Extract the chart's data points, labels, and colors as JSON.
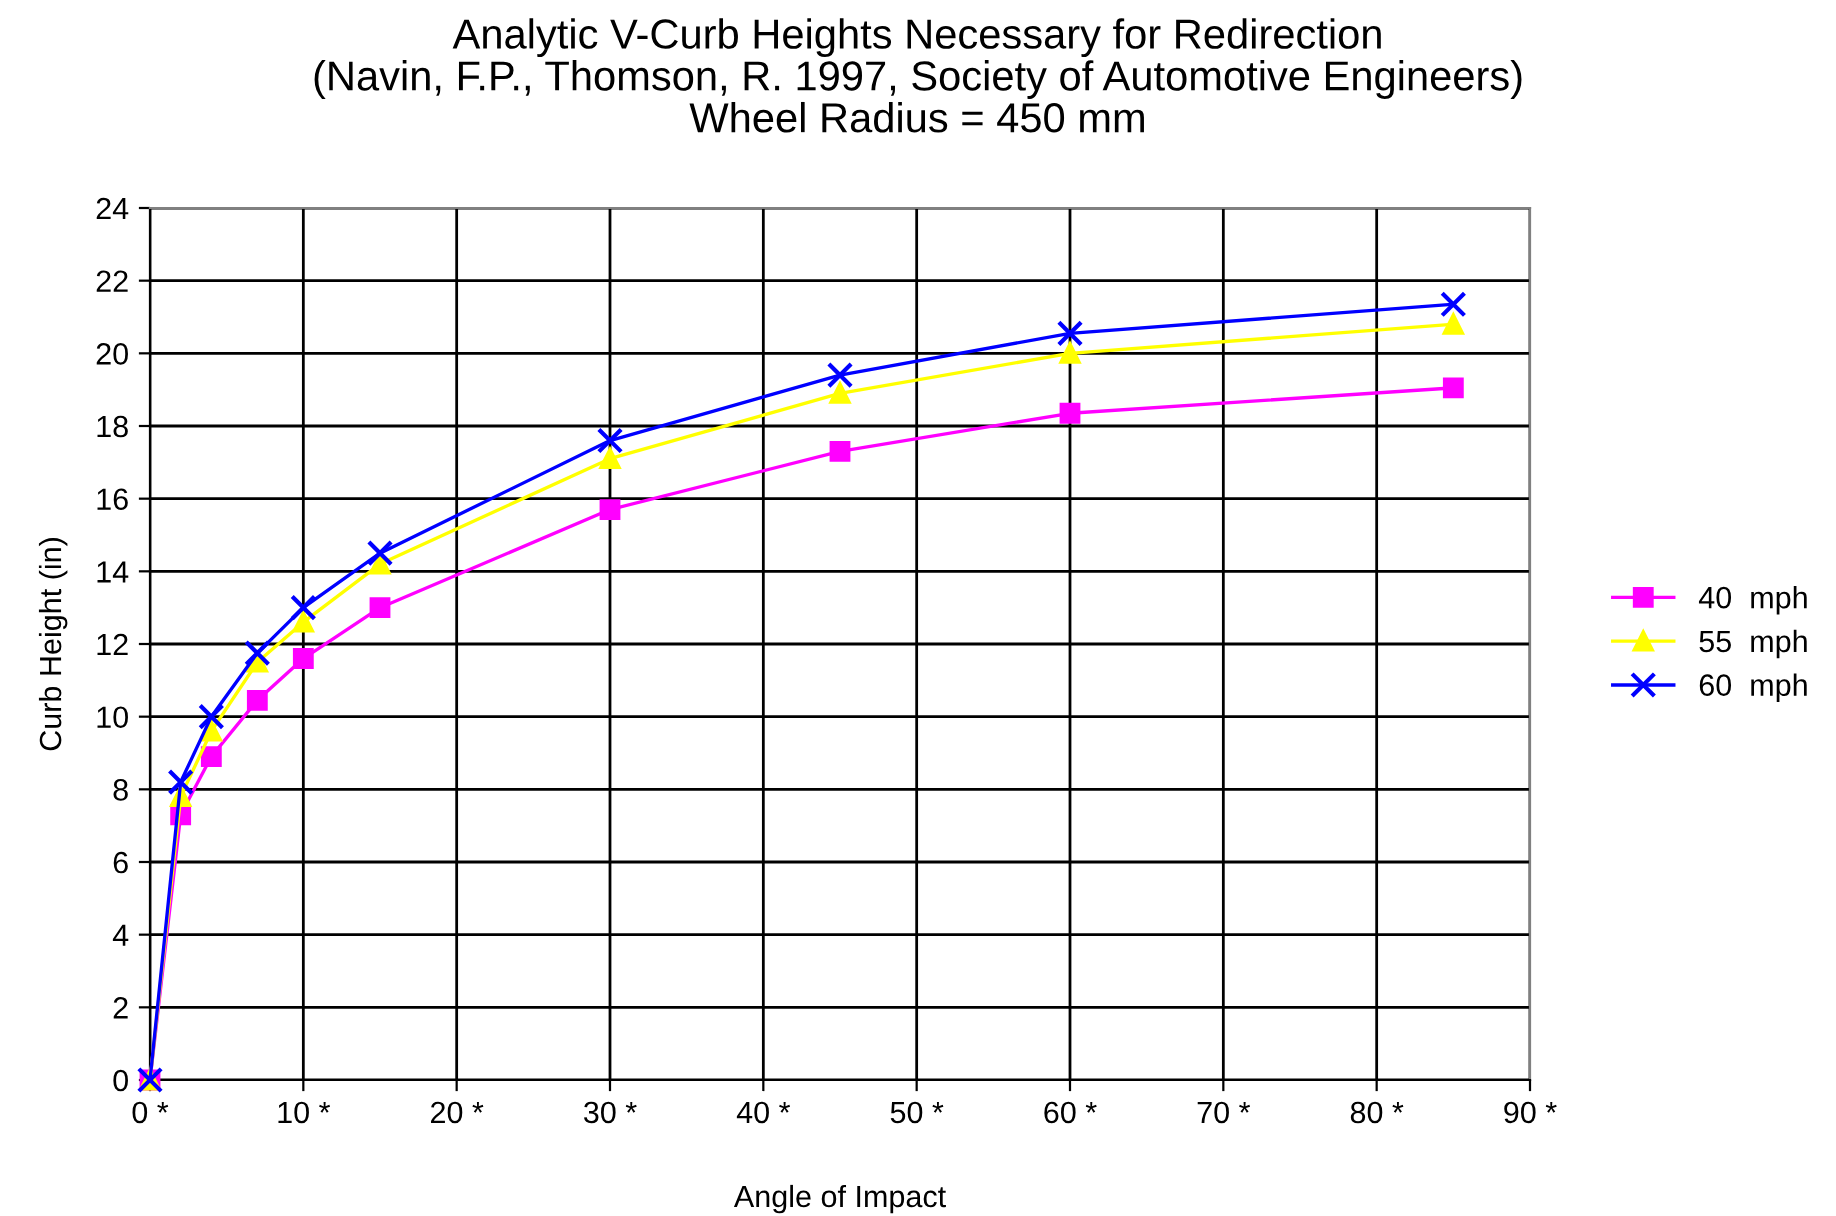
{
  "chart_data": {
    "type": "line",
    "title": "Analytic V-Curb Heights Necessary for Redirection\n(Navin, F.P., Thomson, R. 1997, Society of Automotive Engineers)\nWheel Radius = 450 mm",
    "xlabel": "Angle of Impact",
    "ylabel": "Curb Height (in)",
    "x": [
      0,
      2,
      4,
      7,
      10,
      15,
      30,
      45,
      60,
      85
    ],
    "series": [
      {
        "name": "40  mph",
        "color": "#ff00ff",
        "marker": "square",
        "values": [
          0,
          7.3,
          8.9,
          10.45,
          11.6,
          13.0,
          15.7,
          17.3,
          18.35,
          19.05
        ]
      },
      {
        "name": "55  mph",
        "color": "#ffff00",
        "marker": "triangle",
        "values": [
          0,
          7.8,
          9.6,
          11.5,
          12.6,
          14.2,
          17.1,
          18.9,
          20.0,
          20.8
        ]
      },
      {
        "name": "60  mph",
        "color": "#0000ff",
        "marker": "cross",
        "values": [
          0,
          8.2,
          10.0,
          11.75,
          13.0,
          14.5,
          17.6,
          19.4,
          20.55,
          21.35
        ]
      }
    ],
    "xlim": [
      0,
      90
    ],
    "xticks": [
      {
        "value": 0,
        "label": "0 *"
      },
      {
        "value": 10,
        "label": "10 *"
      },
      {
        "value": 20,
        "label": "20 *"
      },
      {
        "value": 30,
        "label": "30 *"
      },
      {
        "value": 40,
        "label": "40 *"
      },
      {
        "value": 50,
        "label": "50 *"
      },
      {
        "value": 60,
        "label": "60 *"
      },
      {
        "value": 70,
        "label": "70 *"
      },
      {
        "value": 80,
        "label": "80 *"
      },
      {
        "value": 90,
        "label": "90 *"
      }
    ],
    "ylim": [
      0,
      24
    ],
    "yticks": [
      0,
      2,
      4,
      6,
      8,
      10,
      12,
      14,
      16,
      18,
      20,
      22,
      24
    ],
    "grid": true,
    "legend": "right",
    "line_style": "solid"
  }
}
